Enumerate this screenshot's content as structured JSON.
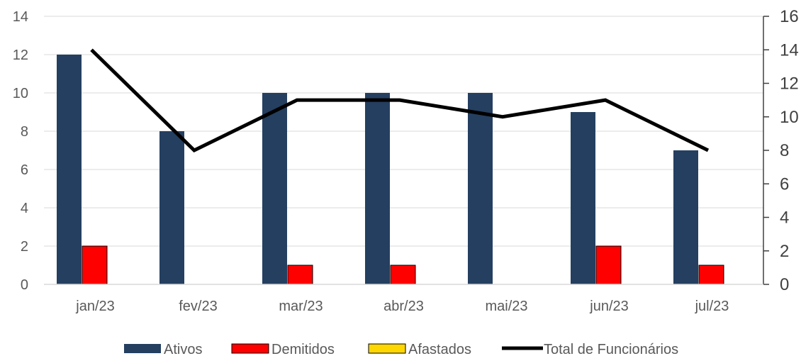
{
  "chart_data": {
    "type": "bar",
    "categories": [
      "jan/23",
      "fev/23",
      "mar/23",
      "abr/23",
      "mai/23",
      "jun/23",
      "jul/23"
    ],
    "series": [
      {
        "name": "Ativos",
        "type": "bar",
        "axis": "left",
        "color": "#243F60",
        "values": [
          12,
          8,
          10,
          10,
          10,
          9,
          7
        ]
      },
      {
        "name": "Demitidos",
        "type": "bar",
        "axis": "left",
        "color": "#FF0000",
        "values": [
          2,
          0,
          1,
          1,
          0,
          2,
          1
        ]
      },
      {
        "name": "Afastados",
        "type": "bar",
        "axis": "left",
        "color": "#FFD700",
        "values": [
          0,
          0,
          0,
          0,
          0,
          0,
          0
        ]
      },
      {
        "name": "Total de Funcionários",
        "type": "line",
        "axis": "right",
        "color": "#000000",
        "values": [
          14,
          8,
          11,
          11,
          10,
          11,
          8
        ]
      }
    ],
    "y_left": {
      "min": 0,
      "max": 14,
      "step": 2
    },
    "y_right": {
      "min": 0,
      "max": 16,
      "step": 2
    },
    "grid": true,
    "legend_position": "bottom"
  }
}
